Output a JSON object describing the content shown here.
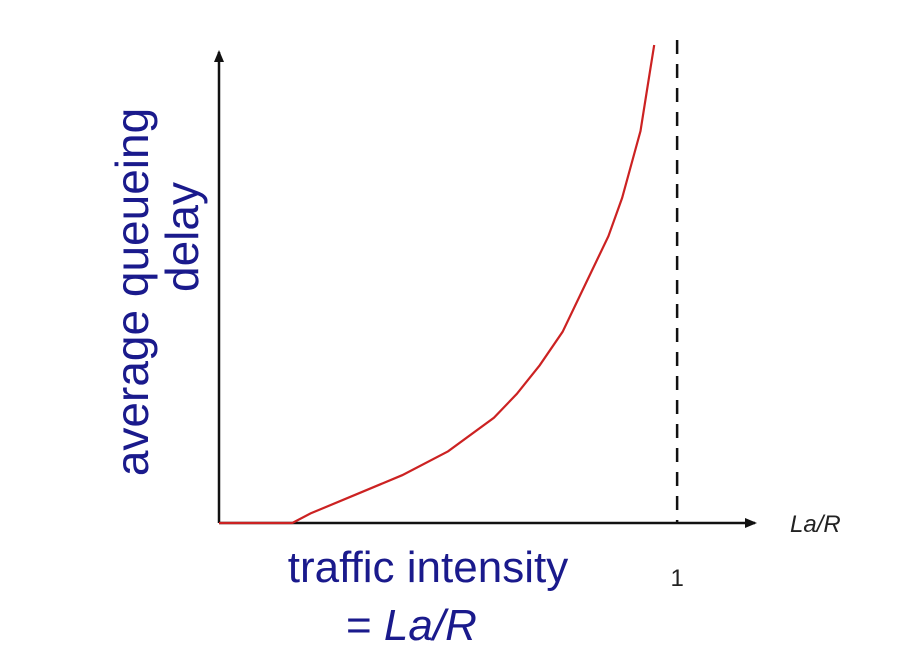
{
  "chart_data": {
    "type": "line",
    "ylabel_lines": [
      "average queueing",
      "delay"
    ],
    "xlabel_lines": [
      "traffic intensity",
      "= ",
      "La/R"
    ],
    "x_axis_name": "La/R",
    "x_tick_labels": [
      {
        "x": 1,
        "label": "1"
      }
    ],
    "xlim": [
      0,
      1.17
    ],
    "ylim": [
      0,
      1
    ],
    "asymptote": {
      "x": 1,
      "style": "dashed"
    },
    "series": [
      {
        "color": "#cc2222",
        "x": [
          0.0,
          0.16,
          0.2,
          0.3,
          0.4,
          0.5,
          0.6,
          0.65,
          0.7,
          0.75,
          0.8,
          0.85,
          0.88,
          0.9,
          0.92,
          0.94,
          0.95
        ],
        "y": [
          0.0,
          0.0,
          0.02,
          0.06,
          0.1,
          0.15,
          0.22,
          0.27,
          0.33,
          0.4,
          0.5,
          0.6,
          0.68,
          0.75,
          0.82,
          0.94,
          1.0
        ]
      }
    ]
  }
}
